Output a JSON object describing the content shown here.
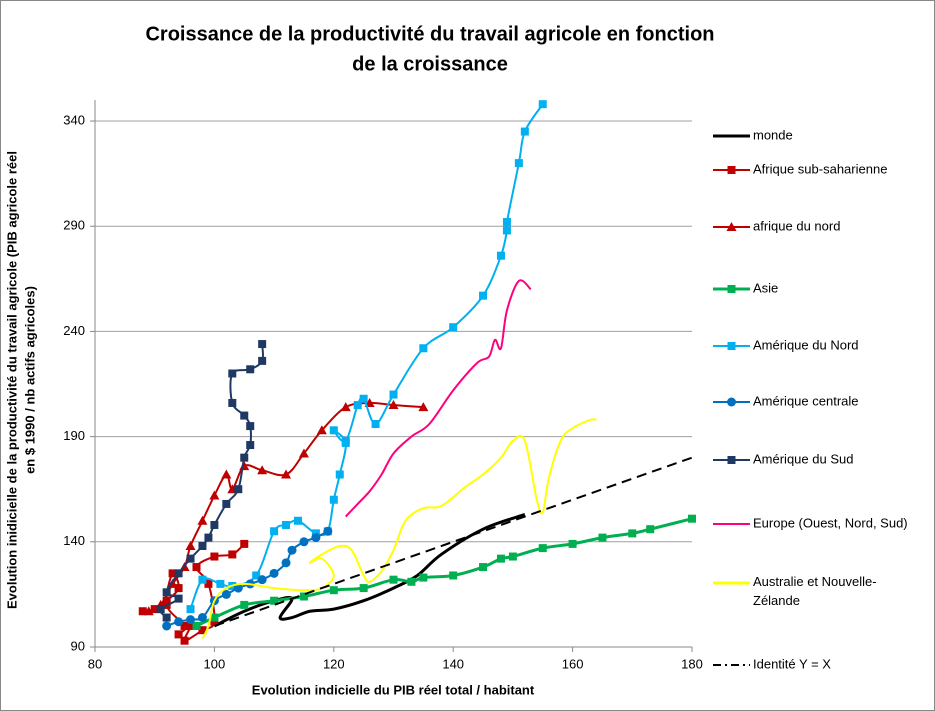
{
  "chart_data": {
    "type": "scatter",
    "title": [
      "Croissance de la productivité du travail agricole en fonction",
      "de la croissance"
    ],
    "x_label": "Evolution indicielle du PIB réel total / habitant",
    "y_label": [
      "Evolution inidicielle de la productivité du travail agricole  (PIB agricole réel",
      "en $ 1990 / nb actifs agricoles)"
    ],
    "xlim": [
      80,
      180
    ],
    "ylim": [
      90,
      350
    ],
    "xticks": [
      80,
      100,
      120,
      140,
      160,
      180
    ],
    "yticks": [
      90,
      140,
      190,
      240,
      290,
      340
    ],
    "grid": true,
    "legend": "right",
    "series": [
      {
        "name": "monde",
        "color": "#000000",
        "marker": "none",
        "line_style": "solid",
        "width": 3,
        "x": [
          100,
          105,
          110,
          113,
          111,
          113,
          116,
          120,
          125,
          130,
          134,
          138,
          145,
          152
        ],
        "values": [
          100,
          107,
          112,
          113,
          104,
          104,
          107,
          108,
          112,
          118,
          124,
          134,
          146,
          153
        ]
      },
      {
        "name": "Afrique sub-saharienne",
        "color": "#c00000",
        "marker": "square",
        "line_style": "solid",
        "width": 2,
        "x": [
          88,
          90,
          92,
          94,
          93,
          92,
          95,
          94,
          96,
          95,
          98,
          100,
          99,
          97,
          100,
          103,
          105
        ],
        "values": [
          107,
          108,
          112,
          118,
          125,
          110,
          100,
          96,
          100,
          93,
          98,
          102,
          120,
          128,
          133,
          134,
          139
        ]
      },
      {
        "name": "afrique du nord",
        "color": "#c00000",
        "marker": "triangle",
        "line_style": "solid",
        "width": 2,
        "x": [
          89,
          91,
          93,
          95,
          96,
          98,
          100,
          102,
          103,
          105,
          108,
          112,
          115,
          118,
          122,
          126,
          130,
          135
        ],
        "values": [
          107,
          110,
          120,
          128,
          138,
          150,
          162,
          172,
          165,
          176,
          174,
          172,
          182,
          193,
          204,
          206,
          205,
          204
        ]
      },
      {
        "name": "Asie",
        "color": "#00b050",
        "marker": "square",
        "line_style": "solid",
        "width": 3,
        "x": [
          97,
          100,
          105,
          110,
          115,
          120,
          125,
          130,
          133,
          135,
          140,
          145,
          148,
          150,
          155,
          160,
          165,
          170,
          173,
          180
        ],
        "values": [
          100,
          104,
          110,
          112,
          114,
          117,
          118,
          122,
          121,
          123,
          124,
          128,
          132,
          133,
          137,
          139,
          142,
          144,
          146,
          151
        ]
      },
      {
        "name": "Amérique du Nord",
        "color": "#00b0f0",
        "marker": "square",
        "line_style": "solid",
        "width": 2,
        "x": [
          96,
          98,
          101,
          103,
          107,
          110,
          112,
          114,
          117,
          119,
          120,
          121,
          122,
          120,
          122,
          124,
          125,
          127,
          130,
          135,
          140,
          145,
          148,
          149,
          149,
          151,
          152,
          155
        ],
        "values": [
          108,
          122,
          120,
          119,
          124,
          145,
          148,
          150,
          144,
          145,
          160,
          172,
          187,
          193,
          188,
          205,
          208,
          196,
          210,
          232,
          242,
          257,
          276,
          288,
          292,
          320,
          335,
          348
        ]
      },
      {
        "name": "Amérique centrale",
        "color": "#0070c0",
        "marker": "circle",
        "line_style": "solid",
        "width": 2,
        "x": [
          92,
          94,
          96,
          98,
          100,
          102,
          104,
          106,
          108,
          110,
          112,
          113,
          115,
          117,
          119
        ],
        "values": [
          100,
          102,
          103,
          104,
          112,
          115,
          118,
          120,
          122,
          125,
          130,
          136,
          140,
          142,
          145
        ]
      },
      {
        "name": "Amérique du Sud",
        "color": "#1f3864",
        "marker": "square",
        "line_style": "solid",
        "width": 2,
        "x": [
          92,
          91,
          94,
          92,
          94,
          96,
          98,
          99,
          100,
          102,
          104,
          105,
          106,
          106,
          105,
          103,
          103,
          106,
          108,
          108
        ],
        "values": [
          104,
          108,
          113,
          116,
          125,
          132,
          138,
          142,
          148,
          158,
          165,
          180,
          186,
          195,
          200,
          206,
          220,
          222,
          226,
          234
        ]
      },
      {
        "name": "Europe (Ouest, Nord, Sud)",
        "color": "#ff0080",
        "marker": "none",
        "line_style": "solid",
        "width": 2,
        "x": [
          122,
          124,
          126,
          128,
          130,
          133,
          136,
          140,
          144,
          146,
          147,
          148,
          149,
          151,
          153
        ],
        "values": [
          152,
          158,
          164,
          172,
          182,
          190,
          196,
          212,
          225,
          228,
          236,
          232,
          250,
          264,
          260
        ]
      },
      {
        "name": "Australie et Nouvelle-Zélande",
        "color": "#ffff00",
        "marker": "none",
        "line_style": "solid",
        "width": 2,
        "x": [
          98,
          99,
          100,
          102,
          105,
          110,
          115,
          118,
          120,
          118,
          116,
          118,
          121,
          123,
          125,
          126,
          128,
          130,
          132,
          135,
          138,
          142,
          145,
          148,
          150,
          152,
          154,
          155,
          156,
          158,
          160,
          163,
          164
        ],
        "values": [
          94,
          100,
          112,
          118,
          120,
          118,
          117,
          118,
          124,
          132,
          130,
          134,
          138,
          136,
          124,
          121,
          126,
          136,
          150,
          156,
          157,
          166,
          172,
          180,
          188,
          188,
          160,
          154,
          170,
          188,
          194,
          198,
          198
        ]
      },
      {
        "name": "Identité Y = X",
        "color": "#000000",
        "marker": "none",
        "line_style": "dashed",
        "width": 2,
        "x": [
          100,
          180
        ],
        "values": [
          100,
          180
        ]
      }
    ]
  }
}
